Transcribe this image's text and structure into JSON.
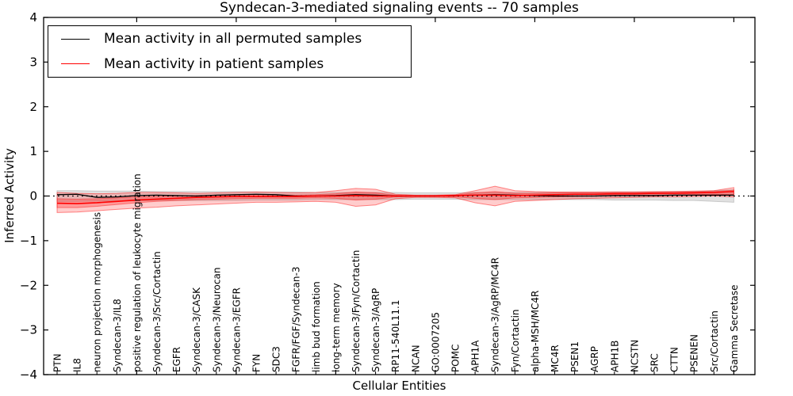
{
  "chart_data": {
    "type": "line",
    "title": "Syndecan-3-mediated signaling events -- 70 samples",
    "xlabel": "Cellular Entities",
    "ylabel": "Inferred Activity",
    "ylim": [
      -4,
      4
    ],
    "ytick_labels": [
      "4",
      "3",
      "2",
      "1",
      "0",
      "−1",
      "−2",
      "−3",
      "−4"
    ],
    "ytick_values": [
      4,
      3,
      2,
      1,
      0,
      -1,
      -2,
      -3,
      -4
    ],
    "xticks_major_entities": [
      5,
      10,
      15,
      20,
      25,
      30,
      35
    ],
    "zero_line": true,
    "legend_position": "upper left",
    "categories": [
      "PTN",
      "IL8",
      "neuron projection morphogenesis",
      "Syndecan-3/IL8",
      "positive regulation of leukocyte migration",
      "Syndecan-3/Src/Cortactin",
      "EGFR",
      "Syndecan-3/CASK",
      "Syndecan-3/Neurocan",
      "Syndecan-3/EGFR",
      "FYN",
      "SDC3",
      "FGFR/FGF/Syndecan-3",
      "limb bud formation",
      "long-term memory",
      "Syndecan-3/Fyn/Cortactin",
      "Syndecan-3/AgRP",
      "RP11-540L11.1",
      "NCAN",
      "GO:0007205",
      "POMC",
      "APH1A",
      "Syndecan-3/AgRP/MC4R",
      "Fyn/Cortactin",
      "alpha-MSH/MC4R",
      "MC4R",
      "PSEN1",
      "AGRP",
      "APH1B",
      "NCSTN",
      "SRC",
      "CTTN",
      "PSENEN",
      "Src/Cortactin",
      "Gamma Secretase"
    ],
    "series": [
      {
        "name": "Mean activity in all permuted samples",
        "color": "#000000",
        "values": [
          0.03,
          0.04,
          -0.03,
          -0.02,
          0.01,
          0.02,
          0.01,
          0.0,
          0.02,
          0.03,
          0.04,
          0.03,
          0.0,
          0.0,
          0.01,
          0.03,
          0.02,
          0.0,
          0.0,
          0.0,
          0.01,
          0.02,
          0.03,
          0.02,
          0.01,
          0.0,
          0.0,
          0.0,
          0.01,
          0.01,
          0.01,
          0.02,
          0.02,
          0.02,
          0.02
        ]
      },
      {
        "name": "Mean activity in patient samples",
        "color": "#ff0000",
        "values": [
          -0.16,
          -0.17,
          -0.15,
          -0.12,
          -0.09,
          -0.07,
          -0.05,
          -0.03,
          -0.02,
          -0.01,
          -0.01,
          -0.01,
          -0.01,
          0.0,
          0.0,
          0.01,
          0.0,
          0.0,
          0.0,
          0.0,
          0.01,
          0.02,
          0.02,
          0.01,
          0.02,
          0.03,
          0.04,
          0.04,
          0.05,
          0.05,
          0.06,
          0.06,
          0.07,
          0.08,
          0.1
        ]
      }
    ],
    "bands": [
      {
        "name": "permuted-samples-spread",
        "color": "#aaaaaa",
        "fill_alpha": 0.35,
        "edge_alpha": 0.55,
        "lo": [
          -0.12,
          -0.12,
          -0.11,
          -0.11,
          -0.11,
          -0.1,
          -0.1,
          -0.1,
          -0.1,
          -0.1,
          -0.09,
          -0.09,
          -0.09,
          -0.08,
          -0.08,
          -0.08,
          -0.08,
          -0.08,
          -0.07,
          -0.07,
          -0.07,
          -0.08,
          -0.08,
          -0.08,
          -0.08,
          -0.08,
          -0.08,
          -0.08,
          -0.09,
          -0.09,
          -0.09,
          -0.1,
          -0.1,
          -0.12,
          -0.14
        ],
        "hi": [
          0.12,
          0.12,
          0.11,
          0.11,
          0.11,
          0.1,
          0.1,
          0.1,
          0.1,
          0.1,
          0.09,
          0.09,
          0.09,
          0.08,
          0.08,
          0.08,
          0.08,
          0.08,
          0.07,
          0.07,
          0.07,
          0.08,
          0.08,
          0.08,
          0.08,
          0.08,
          0.08,
          0.08,
          0.09,
          0.09,
          0.09,
          0.1,
          0.1,
          0.12,
          0.14
        ]
      },
      {
        "name": "patient-samples-spread-outer",
        "color": "#ff0000",
        "fill_alpha": 0.2,
        "edge_alpha": 0.45,
        "lo": [
          -0.37,
          -0.36,
          -0.33,
          -0.3,
          -0.27,
          -0.25,
          -0.22,
          -0.2,
          -0.18,
          -0.16,
          -0.14,
          -0.14,
          -0.13,
          -0.12,
          -0.14,
          -0.23,
          -0.2,
          -0.06,
          -0.03,
          -0.03,
          -0.04,
          -0.15,
          -0.22,
          -0.12,
          -0.1,
          -0.08,
          -0.06,
          -0.05,
          -0.04,
          -0.03,
          -0.02,
          -0.02,
          -0.01,
          0.0,
          -0.02
        ],
        "hi": [
          0.08,
          0.06,
          0.05,
          0.06,
          0.08,
          0.08,
          0.07,
          0.06,
          0.07,
          0.08,
          0.09,
          0.08,
          0.07,
          0.08,
          0.12,
          0.17,
          0.15,
          0.04,
          0.02,
          0.02,
          0.03,
          0.12,
          0.22,
          0.12,
          0.1,
          0.09,
          0.09,
          0.09,
          0.09,
          0.09,
          0.1,
          0.1,
          0.11,
          0.12,
          0.19
        ]
      },
      {
        "name": "patient-samples-spread-inner",
        "color": "#ff0000",
        "fill_alpha": 0.25,
        "edge_alpha": 0.4,
        "lo": [
          -0.26,
          -0.26,
          -0.23,
          -0.19,
          -0.15,
          -0.12,
          -0.1,
          -0.08,
          -0.07,
          -0.06,
          -0.05,
          -0.05,
          -0.05,
          -0.04,
          -0.05,
          -0.09,
          -0.07,
          -0.02,
          -0.01,
          -0.01,
          -0.02,
          -0.05,
          -0.08,
          -0.04,
          -0.03,
          -0.02,
          -0.01,
          0.0,
          0.0,
          0.01,
          0.02,
          0.02,
          0.03,
          0.04,
          0.03
        ],
        "hi": [
          -0.06,
          -0.07,
          -0.06,
          -0.04,
          -0.02,
          -0.01,
          0.0,
          0.01,
          0.02,
          0.03,
          0.03,
          0.03,
          0.02,
          0.03,
          0.05,
          0.09,
          0.07,
          0.02,
          0.01,
          0.01,
          0.02,
          0.07,
          0.1,
          0.06,
          0.06,
          0.07,
          0.07,
          0.07,
          0.08,
          0.08,
          0.08,
          0.09,
          0.09,
          0.1,
          0.13
        ]
      }
    ]
  }
}
